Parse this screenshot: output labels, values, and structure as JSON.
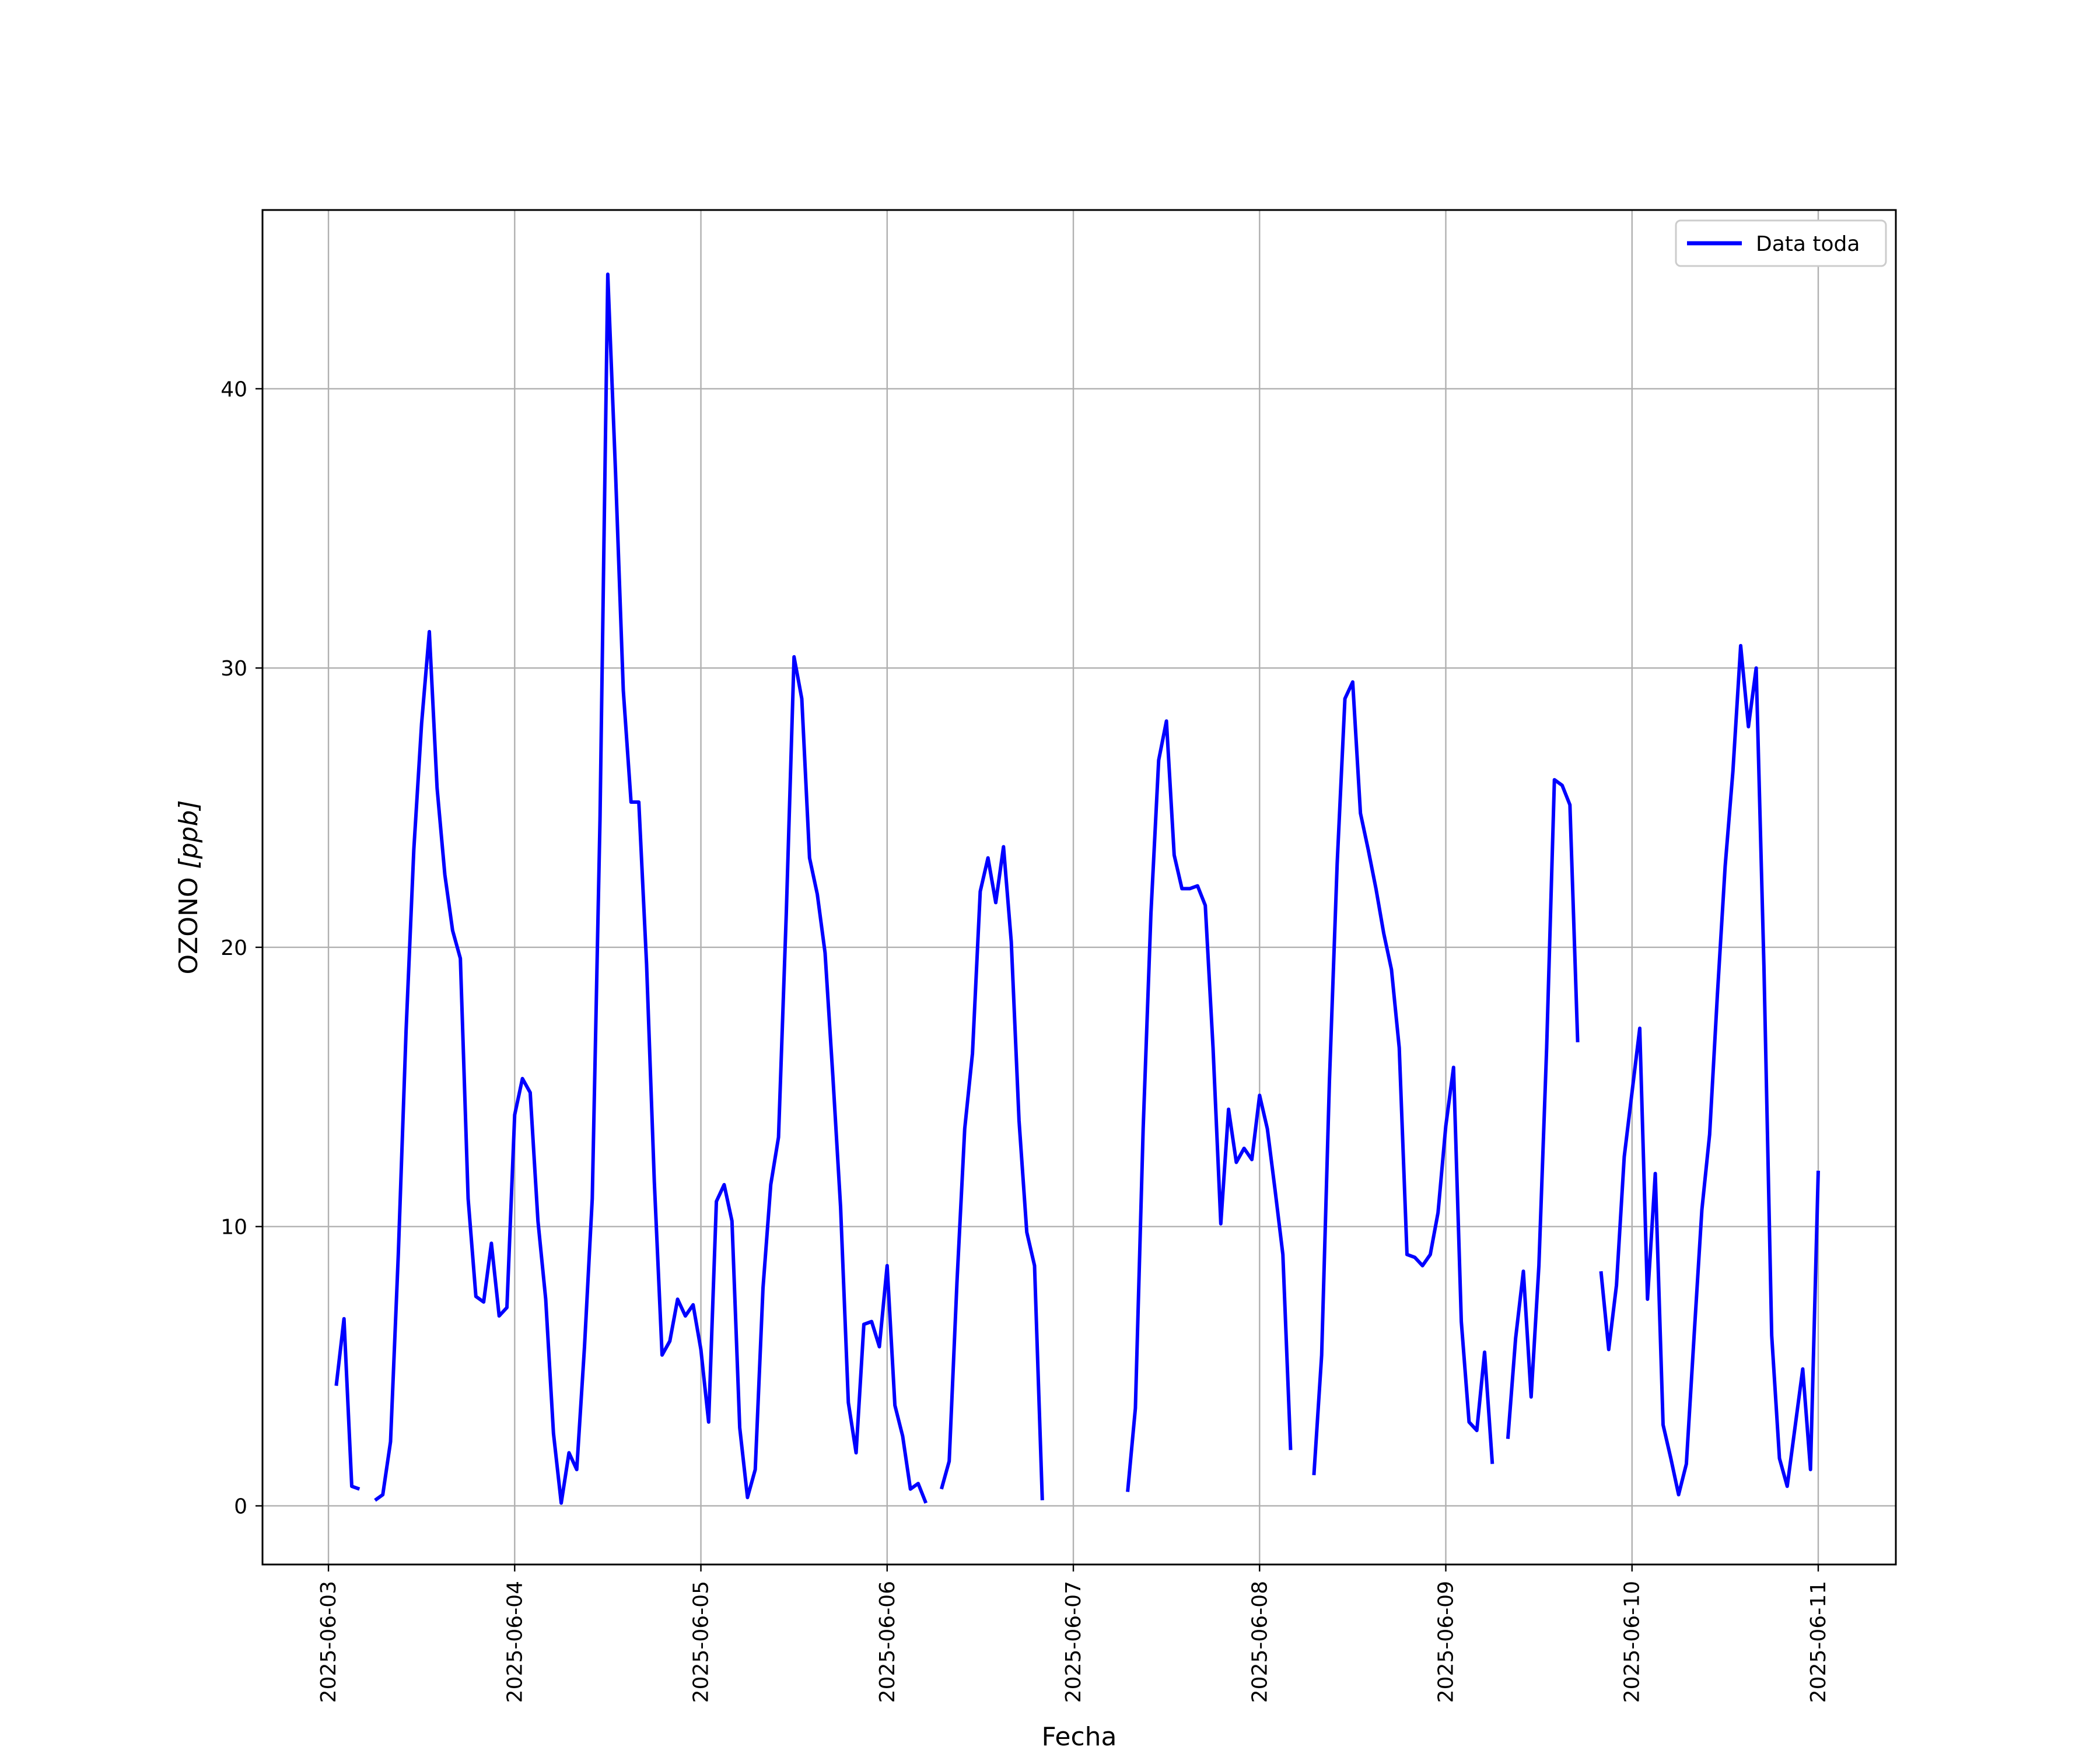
{
  "chart_data": {
    "type": "line",
    "title": "",
    "xlabel": "Fecha",
    "ylabel_main": "OZONO ",
    "ylabel_unit": "[ppb]",
    "x_ticks": [
      "2025-06-03",
      "2025-06-04",
      "2025-06-05",
      "2025-06-06",
      "2025-06-07",
      "2025-06-08",
      "2025-06-09",
      "2025-06-10",
      "2025-06-11"
    ],
    "y_ticks": [
      0,
      10,
      20,
      30,
      40
    ],
    "xlim": [
      "2025-06-02T15:30",
      "2025-06-11T10:00"
    ],
    "ylim": [
      -2.1,
      46.4
    ],
    "grid": true,
    "legend_position": "top-right",
    "series": [
      {
        "name": "Data toda",
        "color": "#0000ff",
        "points": [
          [
            "2025-06-03T01:00",
            4.3
          ],
          [
            "2025-06-03T02:00",
            6.7
          ],
          [
            "2025-06-03T03:00",
            0.7
          ],
          [
            "2025-06-03T04:00",
            0.6
          ],
          [
            "2025-06-03T05:00",
            null
          ],
          [
            "2025-06-03T06:00",
            0.2
          ],
          [
            "2025-06-03T07:00",
            0.4
          ],
          [
            "2025-06-03T08:00",
            2.3
          ],
          [
            "2025-06-03T09:00",
            9.0
          ],
          [
            "2025-06-03T10:00",
            17.0
          ],
          [
            "2025-06-03T11:00",
            23.5
          ],
          [
            "2025-06-03T12:00",
            28.0
          ],
          [
            "2025-06-03T13:00",
            31.3
          ],
          [
            "2025-06-03T14:00",
            25.7
          ],
          [
            "2025-06-03T15:00",
            22.6
          ],
          [
            "2025-06-03T16:00",
            20.6
          ],
          [
            "2025-06-03T17:00",
            19.6
          ],
          [
            "2025-06-03T18:00",
            11.0
          ],
          [
            "2025-06-03T19:00",
            7.5
          ],
          [
            "2025-06-03T20:00",
            7.3
          ],
          [
            "2025-06-03T21:00",
            9.4
          ],
          [
            "2025-06-03T22:00",
            6.8
          ],
          [
            "2025-06-03T23:00",
            7.1
          ],
          [
            "2025-06-04T00:00",
            14.0
          ],
          [
            "2025-06-04T01:00",
            15.3
          ],
          [
            "2025-06-04T02:00",
            14.8
          ],
          [
            "2025-06-04T03:00",
            10.2
          ],
          [
            "2025-06-04T04:00",
            7.4
          ],
          [
            "2025-06-04T05:00",
            2.6
          ],
          [
            "2025-06-04T06:00",
            0.1
          ],
          [
            "2025-06-04T07:00",
            1.9
          ],
          [
            "2025-06-04T08:00",
            1.3
          ],
          [
            "2025-06-04T09:00",
            5.7
          ],
          [
            "2025-06-04T10:00",
            11.0
          ],
          [
            "2025-06-04T11:00",
            24.6
          ],
          [
            "2025-06-04T12:00",
            44.1
          ],
          [
            "2025-06-04T13:00",
            37.0
          ],
          [
            "2025-06-04T14:00",
            29.2
          ],
          [
            "2025-06-04T15:00",
            25.2
          ],
          [
            "2025-06-04T16:00",
            25.2
          ],
          [
            "2025-06-04T17:00",
            19.4
          ],
          [
            "2025-06-04T18:00",
            11.6
          ],
          [
            "2025-06-04T19:00",
            5.4
          ],
          [
            "2025-06-04T20:00",
            5.9
          ],
          [
            "2025-06-04T21:00",
            7.4
          ],
          [
            "2025-06-04T22:00",
            6.8
          ],
          [
            "2025-06-04T23:00",
            7.2
          ],
          [
            "2025-06-05T00:00",
            5.6
          ],
          [
            "2025-06-05T01:00",
            3.0
          ],
          [
            "2025-06-05T02:00",
            10.9
          ],
          [
            "2025-06-05T03:00",
            11.5
          ],
          [
            "2025-06-05T04:00",
            10.2
          ],
          [
            "2025-06-05T05:00",
            2.8
          ],
          [
            "2025-06-05T06:00",
            0.3
          ],
          [
            "2025-06-05T07:00",
            1.3
          ],
          [
            "2025-06-05T08:00",
            7.8
          ],
          [
            "2025-06-05T09:00",
            11.5
          ],
          [
            "2025-06-05T10:00",
            13.2
          ],
          [
            "2025-06-05T11:00",
            21.2
          ],
          [
            "2025-06-05T12:00",
            30.4
          ],
          [
            "2025-06-05T13:00",
            28.9
          ],
          [
            "2025-06-05T14:00",
            23.2
          ],
          [
            "2025-06-05T15:00",
            21.9
          ],
          [
            "2025-06-05T16:00",
            19.8
          ],
          [
            "2025-06-05T17:00",
            15.4
          ],
          [
            "2025-06-05T18:00",
            10.7
          ],
          [
            "2025-06-05T19:00",
            3.7
          ],
          [
            "2025-06-05T20:00",
            1.9
          ],
          [
            "2025-06-05T21:00",
            6.5
          ],
          [
            "2025-06-05T22:00",
            6.6
          ],
          [
            "2025-06-05T23:00",
            5.7
          ],
          [
            "2025-06-06T00:00",
            8.6
          ],
          [
            "2025-06-06T01:00",
            3.6
          ],
          [
            "2025-06-06T02:00",
            2.5
          ],
          [
            "2025-06-06T03:00",
            0.6
          ],
          [
            "2025-06-06T04:00",
            0.8
          ],
          [
            "2025-06-06T05:00",
            0.1
          ],
          [
            "2025-06-06T06:00",
            null
          ],
          [
            "2025-06-06T07:00",
            0.6
          ],
          [
            "2025-06-06T08:00",
            1.6
          ],
          [
            "2025-06-06T09:00",
            8.0
          ],
          [
            "2025-06-06T10:00",
            13.5
          ],
          [
            "2025-06-06T11:00",
            16.2
          ],
          [
            "2025-06-06T12:00",
            22.0
          ],
          [
            "2025-06-06T13:00",
            23.2
          ],
          [
            "2025-06-06T14:00",
            21.6
          ],
          [
            "2025-06-06T15:00",
            23.6
          ],
          [
            "2025-06-06T16:00",
            20.2
          ],
          [
            "2025-06-06T17:00",
            13.8
          ],
          [
            "2025-06-06T18:00",
            9.8
          ],
          [
            "2025-06-06T19:00",
            8.6
          ],
          [
            "2025-06-06T20:00",
            0.2
          ],
          [
            "2025-06-06T21:00",
            null
          ],
          [
            "2025-06-07T07:00",
            0.5
          ],
          [
            "2025-06-07T08:00",
            3.5
          ],
          [
            "2025-06-07T09:00",
            13.5
          ],
          [
            "2025-06-07T10:00",
            21.2
          ],
          [
            "2025-06-07T11:00",
            26.7
          ],
          [
            "2025-06-07T12:00",
            28.1
          ],
          [
            "2025-06-07T13:00",
            23.3
          ],
          [
            "2025-06-07T14:00",
            22.1
          ],
          [
            "2025-06-07T15:00",
            22.1
          ],
          [
            "2025-06-07T16:00",
            22.2
          ],
          [
            "2025-06-07T17:00",
            21.5
          ],
          [
            "2025-06-07T18:00",
            16.4
          ],
          [
            "2025-06-07T19:00",
            10.1
          ],
          [
            "2025-06-07T20:00",
            14.2
          ],
          [
            "2025-06-07T21:00",
            12.3
          ],
          [
            "2025-06-07T22:00",
            12.8
          ],
          [
            "2025-06-07T23:00",
            12.4
          ],
          [
            "2025-06-08T00:00",
            14.7
          ],
          [
            "2025-06-08T01:00",
            13.5
          ],
          [
            "2025-06-08T02:00",
            11.3
          ],
          [
            "2025-06-08T03:00",
            9.0
          ],
          [
            "2025-06-08T04:00",
            2.0
          ],
          [
            "2025-06-08T05:00",
            null
          ],
          [
            "2025-06-08T06:00",
            null
          ],
          [
            "2025-06-08T07:00",
            1.1
          ],
          [
            "2025-06-08T08:00",
            5.4
          ],
          [
            "2025-06-08T09:00",
            15.2
          ],
          [
            "2025-06-08T10:00",
            23.0
          ],
          [
            "2025-06-08T11:00",
            28.9
          ],
          [
            "2025-06-08T12:00",
            29.5
          ],
          [
            "2025-06-08T13:00",
            24.8
          ],
          [
            "2025-06-08T14:00",
            23.5
          ],
          [
            "2025-06-08T15:00",
            22.1
          ],
          [
            "2025-06-08T16:00",
            20.5
          ],
          [
            "2025-06-08T17:00",
            19.2
          ],
          [
            "2025-06-08T18:00",
            16.4
          ],
          [
            "2025-06-08T19:00",
            9.0
          ],
          [
            "2025-06-08T20:00",
            8.9
          ],
          [
            "2025-06-08T21:00",
            8.6
          ],
          [
            "2025-06-08T22:00",
            9.0
          ],
          [
            "2025-06-08T23:00",
            10.5
          ],
          [
            "2025-06-09T00:00",
            13.6
          ],
          [
            "2025-06-09T01:00",
            15.7
          ],
          [
            "2025-06-09T02:00",
            6.6
          ],
          [
            "2025-06-09T03:00",
            3.0
          ],
          [
            "2025-06-09T04:00",
            2.7
          ],
          [
            "2025-06-09T05:00",
            5.5
          ],
          [
            "2025-06-09T06:00",
            1.5
          ],
          [
            "2025-06-09T07:00",
            null
          ],
          [
            "2025-06-09T08:00",
            2.4
          ],
          [
            "2025-06-09T09:00",
            6.0
          ],
          [
            "2025-06-09T10:00",
            8.4
          ],
          [
            "2025-06-09T11:00",
            3.9
          ],
          [
            "2025-06-09T12:00",
            8.6
          ],
          [
            "2025-06-09T13:00",
            16.4
          ],
          [
            "2025-06-09T14:00",
            26.0
          ],
          [
            "2025-06-09T15:00",
            25.8
          ],
          [
            "2025-06-09T16:00",
            25.1
          ],
          [
            "2025-06-09T17:00",
            16.6
          ],
          [
            "2025-06-09T18:00",
            null
          ],
          [
            "2025-06-09T19:00",
            null
          ],
          [
            "2025-06-09T20:00",
            8.4
          ],
          [
            "2025-06-09T21:00",
            5.6
          ],
          [
            "2025-06-09T22:00",
            7.9
          ],
          [
            "2025-06-09T23:00",
            12.5
          ],
          [
            "2025-06-10T00:00",
            14.8
          ],
          [
            "2025-06-10T01:00",
            17.1
          ],
          [
            "2025-06-10T02:00",
            7.4
          ],
          [
            "2025-06-10T03:00",
            11.9
          ],
          [
            "2025-06-10T04:00",
            2.9
          ],
          [
            "2025-06-10T05:00",
            1.7
          ],
          [
            "2025-06-10T06:00",
            0.4
          ],
          [
            "2025-06-10T07:00",
            1.5
          ],
          [
            "2025-06-10T08:00",
            6.1
          ],
          [
            "2025-06-10T09:00",
            10.6
          ],
          [
            "2025-06-10T10:00",
            13.3
          ],
          [
            "2025-06-10T11:00",
            18.3
          ],
          [
            "2025-06-10T12:00",
            22.9
          ],
          [
            "2025-06-10T13:00",
            26.3
          ],
          [
            "2025-06-10T14:00",
            30.8
          ],
          [
            "2025-06-10T15:00",
            27.9
          ],
          [
            "2025-06-10T16:00",
            30.0
          ],
          [
            "2025-06-10T17:00",
            19.3
          ],
          [
            "2025-06-10T18:00",
            6.1
          ],
          [
            "2025-06-10T19:00",
            1.7
          ],
          [
            "2025-06-10T20:00",
            0.7
          ],
          [
            "2025-06-10T21:00",
            2.8
          ],
          [
            "2025-06-10T22:00",
            4.9
          ],
          [
            "2025-06-10T23:00",
            1.3
          ],
          [
            "2025-06-11T00:00",
            12.0
          ]
        ]
      }
    ]
  }
}
